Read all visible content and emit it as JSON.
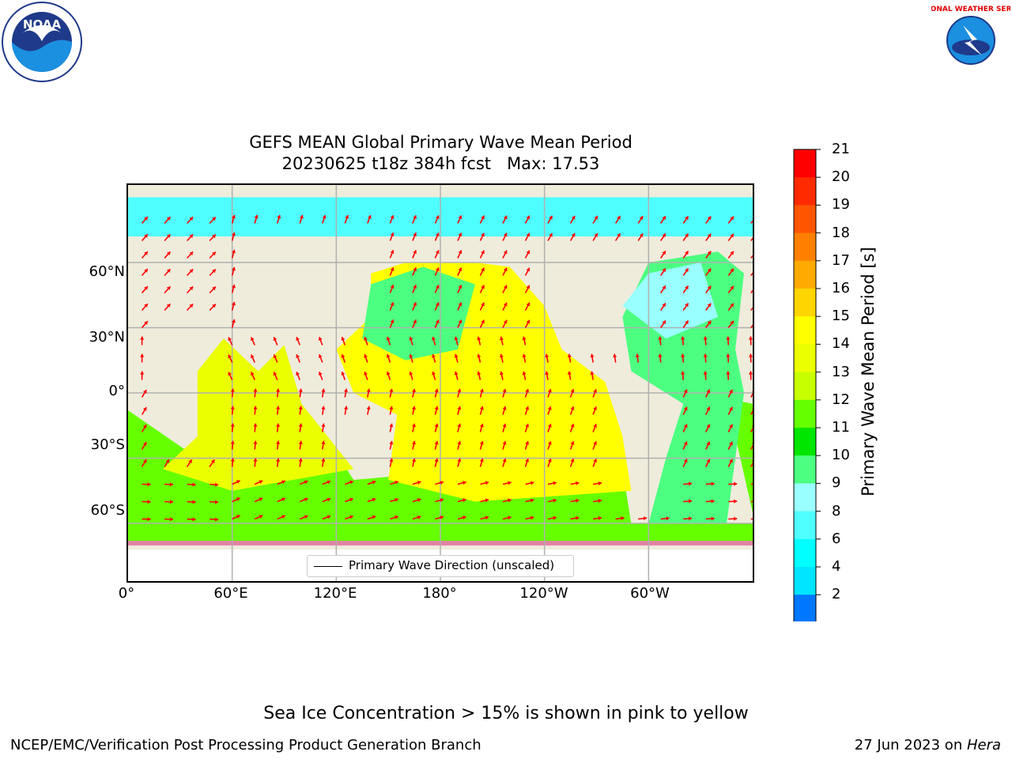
{
  "header": {
    "title_line1": "GEFS MEAN Global Primary Wave Mean Period",
    "title_line2": "20230625 t18z 384h fcst   Max: 17.53"
  },
  "logos": {
    "noaa_text": "NOAA",
    "nws_text": "NATIONAL WEATHER SERVICE"
  },
  "map": {
    "lat_labels": [
      "60°N",
      "30°N",
      "0°",
      "30°S",
      "60°S"
    ],
    "lon_labels": [
      "0°",
      "60°E",
      "120°E",
      "180°",
      "120°W",
      "60°W"
    ],
    "legend_label": "Primary Wave Direction (unscaled)",
    "land_color": "#efecdc",
    "vector_color": "#ff0000",
    "grid_color": "#b0b0b0"
  },
  "colorbar": {
    "title": "Primary Wave Mean Period [s]",
    "tick_labels": [
      "21",
      "20",
      "19",
      "18",
      "17",
      "16",
      "15",
      "14",
      "13",
      "12",
      "11",
      "10",
      "9",
      "8",
      "6",
      "4",
      "2"
    ],
    "colors": [
      "#0000ff",
      "#0077ff",
      "#00e5ff",
      "#00ffff",
      "#4fffff",
      "#99ffff",
      "#4cff80",
      "#00e600",
      "#66ff00",
      "#c8ff00",
      "#ebff00",
      "#ffff00",
      "#ffd500",
      "#ffaa00",
      "#ff8000",
      "#ff5500",
      "#ff2a00",
      "#ff0000"
    ]
  },
  "footer": {
    "note": "Sea Ice Concentration > 15% is shown in pink to yellow",
    "org": "NCEP/EMC/Verification Post Processing Product Generation Branch",
    "date": "27 Jun 2023 on ",
    "machine": "Hera"
  }
}
